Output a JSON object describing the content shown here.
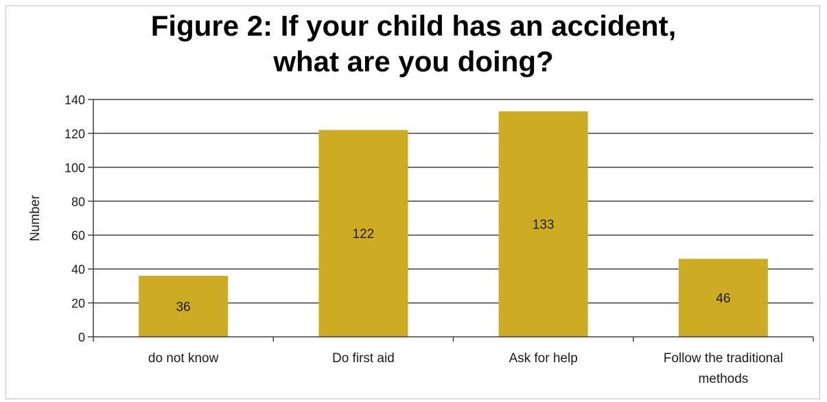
{
  "chart_data": {
    "type": "bar",
    "title_lines": [
      "Figure 2: If your child has an accident,",
      "what are you doing?"
    ],
    "xlabel": "",
    "ylabel": "Number",
    "categories": [
      [
        "do not know"
      ],
      [
        "Do first aid"
      ],
      [
        "Ask for help"
      ],
      [
        "Follow the traditional",
        "methods"
      ]
    ],
    "values": [
      36,
      122,
      133,
      46
    ],
    "data_labels": [
      "36",
      "122",
      "133",
      "46"
    ],
    "ylim": [
      0,
      140
    ],
    "yticks": [
      0,
      20,
      40,
      60,
      80,
      100,
      120,
      140
    ],
    "ytick_labels": [
      "0",
      "20",
      "40",
      "60",
      "80",
      "100",
      "120",
      "140"
    ],
    "grid": true,
    "legend": "none",
    "bar_color": "#cdac24",
    "grid_color": "#404040"
  }
}
